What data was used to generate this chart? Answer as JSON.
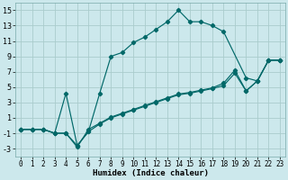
{
  "title": "",
  "xlabel": "Humidex (Indice chaleur)",
  "bg_color": "#cce8ec",
  "grid_color": "#aacccc",
  "line_color": "#006868",
  "xlim": [
    -0.5,
    23.5
  ],
  "ylim": [
    -4,
    16
  ],
  "xticks": [
    0,
    1,
    2,
    3,
    4,
    5,
    6,
    7,
    8,
    9,
    10,
    11,
    12,
    13,
    14,
    15,
    16,
    17,
    18,
    19,
    20,
    21,
    22,
    23
  ],
  "yticks": [
    -3,
    -1,
    1,
    3,
    5,
    7,
    9,
    11,
    13,
    15
  ],
  "s1x": [
    0,
    1,
    2,
    3,
    4,
    5,
    6,
    7,
    8,
    9,
    10,
    11,
    12,
    13,
    14,
    15,
    16,
    17,
    18,
    20,
    21,
    22,
    23
  ],
  "s1y": [
    -0.5,
    -0.5,
    -0.5,
    -1.0,
    4.2,
    -2.6,
    -0.8,
    4.2,
    9.0,
    9.5,
    10.8,
    11.5,
    12.5,
    13.5,
    15.0,
    13.5,
    13.5,
    13.0,
    12.2,
    6.2,
    5.8,
    8.5,
    8.5
  ],
  "s2x": [
    0,
    1,
    2,
    3,
    4,
    5,
    6,
    7,
    8,
    9,
    10,
    11,
    12,
    13,
    14,
    15,
    16,
    17,
    18,
    19,
    20,
    21,
    22,
    23
  ],
  "s2y": [
    -0.5,
    -0.5,
    -0.5,
    -1.0,
    -1.0,
    -2.6,
    -0.8,
    0.2,
    1.0,
    1.5,
    2.0,
    2.5,
    3.0,
    3.5,
    4.0,
    4.2,
    4.5,
    4.8,
    5.2,
    6.8,
    4.5,
    5.8,
    8.5,
    8.5
  ],
  "s3x": [
    0,
    1,
    2,
    3,
    4,
    5,
    6,
    7,
    8,
    9,
    10,
    11,
    12,
    13,
    14,
    15,
    16,
    17,
    18,
    19,
    20,
    21,
    22,
    23
  ],
  "s3y": [
    -0.5,
    -0.5,
    -0.5,
    -1.0,
    -1.0,
    -2.8,
    -0.5,
    0.3,
    1.1,
    1.6,
    2.1,
    2.6,
    3.1,
    3.6,
    4.1,
    4.3,
    4.6,
    4.9,
    5.5,
    7.2,
    4.5,
    5.8,
    8.5,
    8.5
  ],
  "tick_fontsize": 5.5,
  "xlabel_fontsize": 6.5
}
